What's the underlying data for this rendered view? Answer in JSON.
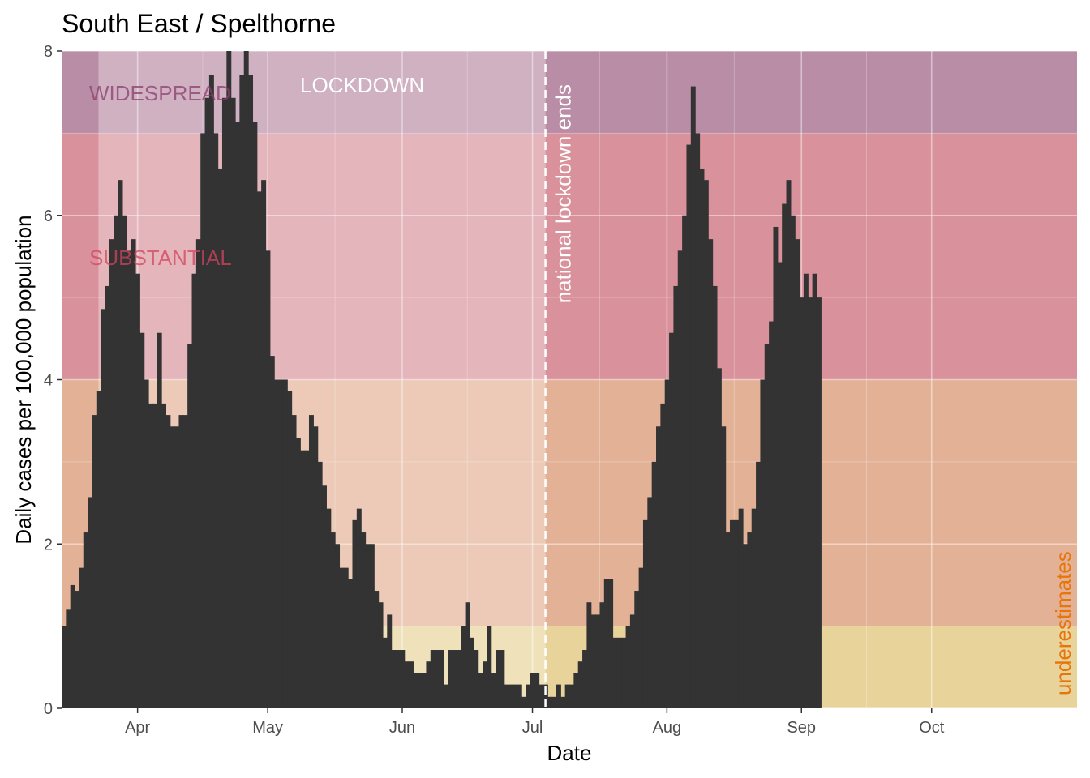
{
  "chart_data": {
    "type": "bar",
    "title": "South East / Spelthorne",
    "xlabel": "Date",
    "ylabel": "Daily cases per 100,000 population",
    "ylim": [
      0,
      8
    ],
    "yticks": [
      0,
      2,
      4,
      6,
      8
    ],
    "xlim_days": [
      -17.5,
      216.5
    ],
    "x_axis_origin_note": "day 0 = Apr 1",
    "xticks": [
      {
        "label": "Apr",
        "day": 0
      },
      {
        "label": "May",
        "day": 30
      },
      {
        "label": "Jun",
        "day": 61
      },
      {
        "label": "Jul",
        "day": 91
      },
      {
        "label": "Aug",
        "day": 122
      },
      {
        "label": "Sep",
        "day": 153
      },
      {
        "label": "Oct",
        "day": 183
      }
    ],
    "zones": [
      {
        "name": "low",
        "from": 0,
        "to": 1,
        "color": "#E8D49A"
      },
      {
        "name": "moderate",
        "from": 1,
        "to": 4,
        "color": "#E3B296"
      },
      {
        "name": "substantial",
        "from": 4,
        "to": 7,
        "color": "#D9929C"
      },
      {
        "name": "widespread",
        "from": 7,
        "to": 8,
        "color": "#B98DA6"
      }
    ],
    "periods": [
      {
        "name": "pre",
        "start_day": -17.5,
        "end_day": -9,
        "lightness": "normal"
      },
      {
        "name": "lockdown",
        "start_day": -9,
        "end_day": 94,
        "lightness": "light"
      },
      {
        "name": "post",
        "start_day": 94,
        "end_day": 216.5,
        "lightness": "normal"
      }
    ],
    "zone_labels": [
      {
        "text": "WIDESPREAD",
        "color": "#8B3D6E"
      },
      {
        "text": "SUBSTANTIAL",
        "color": "#D2445E"
      }
    ],
    "annotations": [
      {
        "text": "LOCKDOWN",
        "color": "#ffffff"
      },
      {
        "text": "national lockdown ends",
        "day": 94,
        "color": "#ffffff"
      },
      {
        "text": "underestimates",
        "color": "#E8750A"
      }
    ],
    "series": [
      {
        "name": "Daily cases per 100,000",
        "color": "#333333",
        "start_day": -17,
        "values": [
          1.0,
          1.2,
          1.5,
          1.43,
          1.71,
          2.14,
          2.57,
          3.57,
          3.86,
          4.86,
          5.14,
          5.71,
          6.0,
          6.43,
          6.0,
          5.57,
          5.71,
          5.29,
          4.57,
          4.0,
          3.71,
          3.71,
          4.57,
          3.71,
          3.57,
          3.43,
          3.43,
          3.57,
          3.57,
          4.43,
          5.29,
          5.71,
          7.0,
          7.43,
          7.71,
          7.0,
          6.57,
          7.43,
          8.0,
          7.43,
          7.14,
          7.71,
          8.0,
          7.71,
          7.14,
          6.29,
          6.43,
          5.57,
          4.29,
          4.0,
          4.0,
          4.0,
          3.86,
          3.57,
          3.29,
          3.14,
          3.14,
          3.57,
          3.43,
          3.0,
          2.71,
          2.43,
          2.14,
          2.0,
          1.71,
          1.71,
          1.57,
          2.29,
          2.43,
          2.14,
          2.0,
          2.0,
          1.43,
          1.29,
          0.86,
          1.14,
          0.71,
          0.71,
          0.71,
          0.57,
          0.57,
          0.43,
          0.43,
          0.43,
          0.57,
          0.71,
          0.71,
          0.71,
          0.29,
          0.71,
          0.71,
          0.71,
          1.0,
          1.29,
          0.86,
          0.71,
          0.43,
          0.57,
          1.0,
          0.43,
          0.71,
          0.71,
          0.29,
          0.29,
          0.29,
          0.29,
          0.14,
          0.29,
          0.43,
          0.43,
          0.29,
          0.29,
          0.14,
          0.14,
          0.29,
          0.14,
          0.29,
          0.29,
          0.43,
          0.57,
          0.71,
          1.29,
          1.14,
          1.14,
          1.29,
          1.57,
          1.57,
          0.86,
          0.86,
          0.86,
          1.0,
          1.14,
          1.43,
          1.71,
          2.29,
          2.57,
          3.0,
          3.43,
          3.71,
          4.0,
          4.57,
          5.14,
          5.57,
          6.0,
          6.86,
          7.57,
          7.0,
          6.57,
          6.43,
          5.71,
          5.14,
          4.14,
          3.43,
          2.14,
          2.29,
          2.29,
          2.43,
          2.0,
          2.14,
          2.43,
          3.0,
          4.0,
          4.43,
          4.71,
          5.86,
          5.43,
          6.14,
          6.43,
          6.0,
          5.71,
          5.0,
          5.29,
          5.0,
          5.29,
          5.0
        ]
      }
    ]
  }
}
